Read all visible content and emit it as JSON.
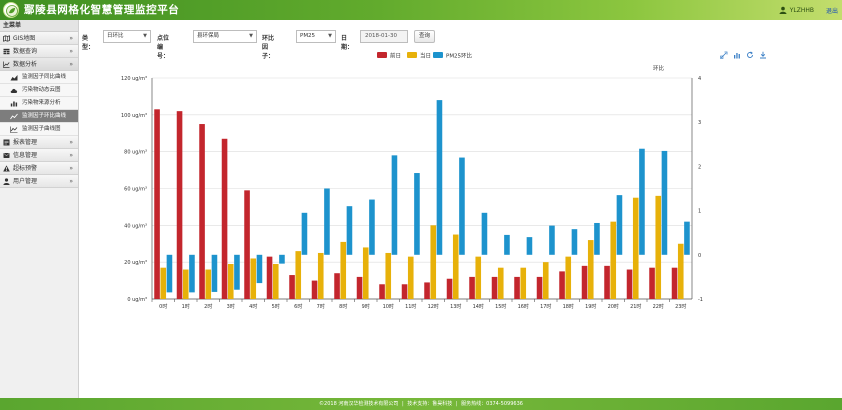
{
  "header": {
    "title": "鄢陵县网格化智慧管理监控平台",
    "user": "YLZHHB",
    "logout": "退出"
  },
  "sidebar": {
    "heading": "主菜单",
    "items": [
      {
        "label": "GIS地图",
        "icon": "map-icon"
      },
      {
        "label": "数据查询",
        "icon": "table-icon"
      },
      {
        "label": "数据分析",
        "icon": "chart-line-icon",
        "open": true
      }
    ],
    "subitems": [
      {
        "label": "监测因子同比曲线"
      },
      {
        "label": "污染物动态云图"
      },
      {
        "label": "污染物来源分析"
      },
      {
        "label": "监测因子环比曲线",
        "active": true
      },
      {
        "label": "监测因子曲线图"
      }
    ],
    "items_after": [
      {
        "label": "报表管理",
        "icon": "report-icon"
      },
      {
        "label": "信息管理",
        "icon": "info-icon"
      },
      {
        "label": "超标预警",
        "icon": "warning-icon"
      },
      {
        "label": "用户管理",
        "icon": "user-icon"
      }
    ]
  },
  "toolbar": {
    "type_label": "类型：",
    "type_value": "日环比",
    "station_label": "点位编号：",
    "station_value": "县环保局",
    "factor_label": "环比因子：",
    "factor_value": "PM25",
    "date_label": "日期：",
    "date_value": "2018-01-30",
    "query_button": "查询"
  },
  "colors": {
    "prev_day": "#c3262d",
    "today": "#e7b10a",
    "ratio": "#1d93cd",
    "header_green": "#4f9c27"
  },
  "chart_data": {
    "type": "bar",
    "categories": [
      "0时",
      "1时",
      "2时",
      "3时",
      "4时",
      "5时",
      "6时",
      "7时",
      "8时",
      "9时",
      "10时",
      "11时",
      "12时",
      "13时",
      "14时",
      "15时",
      "16时",
      "17时",
      "18时",
      "19时",
      "20时",
      "21时",
      "22时",
      "23时"
    ],
    "series": [
      {
        "name": "前日",
        "axis": "left",
        "values": [
          103,
          102,
          95,
          87,
          59,
          23,
          13,
          10,
          14,
          12,
          8,
          8,
          9,
          11,
          12,
          12,
          12,
          12,
          15,
          18,
          18,
          16,
          17,
          17
        ]
      },
      {
        "name": "当日",
        "axis": "left",
        "values": [
          17,
          16,
          16,
          19,
          22,
          19,
          26,
          25,
          31,
          28,
          25,
          23,
          40,
          35,
          23,
          17,
          17,
          20,
          23,
          32,
          42,
          55,
          56,
          30
        ]
      },
      {
        "name": "PM25环比",
        "axis": "right",
        "values": [
          -0.85,
          -0.85,
          -0.84,
          -0.79,
          -0.64,
          -0.2,
          0.95,
          1.5,
          1.1,
          1.25,
          2.25,
          1.85,
          3.5,
          2.2,
          0.95,
          0.45,
          0.4,
          0.66,
          0.58,
          0.72,
          1.35,
          2.4,
          2.35,
          0.75
        ]
      }
    ],
    "yleft_ticks": [
      "0 ug/m³",
      "20 ug/m³",
      "40 ug/m³",
      "60 ug/m³",
      "80 ug/m³",
      "100 ug/m³",
      "120 ug/m³"
    ],
    "yleft_lim": [
      0,
      120
    ],
    "yright_label": "环比",
    "yright_ticks": [
      "-1",
      "0",
      "1",
      "2",
      "3",
      "4"
    ],
    "yright_lim": [
      -1,
      4
    ],
    "legend_position": "top-center",
    "grid": true
  },
  "footer": {
    "copyright": "©2018 河南汉华检测技术有限公司",
    "support": "技术支持：鲁昊科技",
    "hotline": "服务热线：0374-5099636"
  }
}
